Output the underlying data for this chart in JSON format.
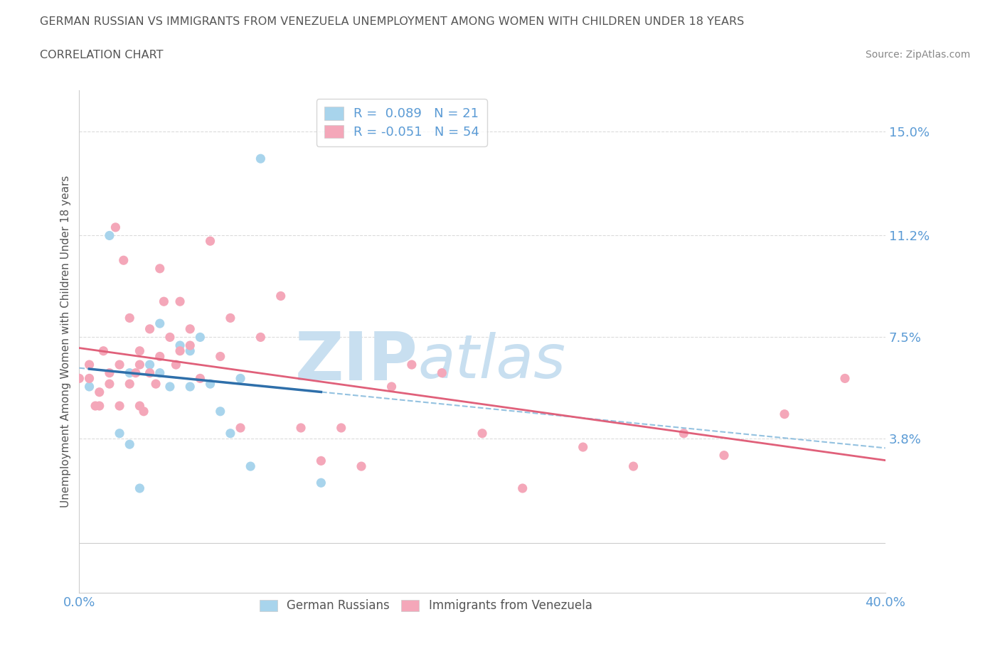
{
  "title_line1": "GERMAN RUSSIAN VS IMMIGRANTS FROM VENEZUELA UNEMPLOYMENT AMONG WOMEN WITH CHILDREN UNDER 18 YEARS",
  "title_line2": "CORRELATION CHART",
  "source": "Source: ZipAtlas.com",
  "ylabel": "Unemployment Among Women with Children Under 18 years",
  "xmin": 0.0,
  "xmax": 0.4,
  "ymin": -0.018,
  "ymax": 0.165,
  "yticks": [
    0.0,
    0.038,
    0.075,
    0.112,
    0.15
  ],
  "ytick_labels": [
    "",
    "3.8%",
    "7.5%",
    "11.2%",
    "15.0%"
  ],
  "xticks": [
    0.0,
    0.1,
    0.2,
    0.3,
    0.4
  ],
  "xtick_labels": [
    "0.0%",
    "",
    "",
    "",
    "40.0%"
  ],
  "watermark_zip": "ZIP",
  "watermark_atlas": "atlas",
  "series": [
    {
      "name": "German Russians",
      "R": 0.089,
      "N": 21,
      "color": "#a8d4ec",
      "edgecolor": "none",
      "trend_color_dashed": "#7ab3d9",
      "trend_color_solid": "#2e6faa",
      "x": [
        0.005,
        0.015,
        0.02,
        0.025,
        0.025,
        0.03,
        0.035,
        0.04,
        0.04,
        0.045,
        0.05,
        0.055,
        0.055,
        0.06,
        0.065,
        0.07,
        0.075,
        0.08,
        0.085,
        0.09,
        0.12
      ],
      "y": [
        0.057,
        0.112,
        0.04,
        0.036,
        0.062,
        0.02,
        0.065,
        0.062,
        0.08,
        0.057,
        0.072,
        0.057,
        0.07,
        0.075,
        0.058,
        0.048,
        0.04,
        0.06,
        0.028,
        0.14,
        0.022
      ]
    },
    {
      "name": "Immigrants from Venezuela",
      "R": -0.051,
      "N": 54,
      "color": "#f4a7b9",
      "edgecolor": "none",
      "trend_color": "#e0607a",
      "x": [
        0.0,
        0.005,
        0.005,
        0.008,
        0.01,
        0.01,
        0.012,
        0.015,
        0.015,
        0.018,
        0.02,
        0.02,
        0.022,
        0.025,
        0.025,
        0.028,
        0.03,
        0.03,
        0.03,
        0.032,
        0.035,
        0.035,
        0.038,
        0.04,
        0.04,
        0.042,
        0.045,
        0.048,
        0.05,
        0.05,
        0.055,
        0.055,
        0.06,
        0.065,
        0.07,
        0.075,
        0.08,
        0.09,
        0.1,
        0.11,
        0.12,
        0.13,
        0.14,
        0.155,
        0.165,
        0.18,
        0.2,
        0.22,
        0.25,
        0.275,
        0.3,
        0.32,
        0.35,
        0.38
      ],
      "y": [
        0.06,
        0.06,
        0.065,
        0.05,
        0.05,
        0.055,
        0.07,
        0.058,
        0.062,
        0.115,
        0.05,
        0.065,
        0.103,
        0.058,
        0.082,
        0.062,
        0.05,
        0.065,
        0.07,
        0.048,
        0.062,
        0.078,
        0.058,
        0.068,
        0.1,
        0.088,
        0.075,
        0.065,
        0.07,
        0.088,
        0.072,
        0.078,
        0.06,
        0.11,
        0.068,
        0.082,
        0.042,
        0.075,
        0.09,
        0.042,
        0.03,
        0.042,
        0.028,
        0.057,
        0.065,
        0.062,
        0.04,
        0.02,
        0.035,
        0.028,
        0.04,
        0.032,
        0.047,
        0.06
      ]
    }
  ],
  "axis_color": "#cccccc",
  "tick_color": "#5b9bd5",
  "grid_color": "#cccccc",
  "title_color": "#555555",
  "watermark_color": "#c8dff0",
  "source_color": "#888888"
}
